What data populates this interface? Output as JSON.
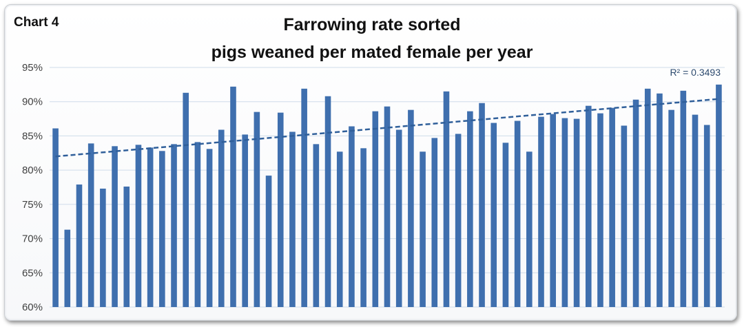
{
  "chart_label": "Chart 4",
  "chart_data": {
    "type": "bar",
    "title": "Farrowing rate sorted",
    "subtitle": "pigs weaned per mated female per year",
    "xlabel": "",
    "ylabel": "",
    "ylim": [
      60,
      95
    ],
    "yticks": [
      "60%",
      "65%",
      "70%",
      "75%",
      "80%",
      "85%",
      "90%",
      "95%"
    ],
    "grid": true,
    "bar_color": "#3f6fae",
    "trendline": {
      "type": "linear",
      "style": "dashed",
      "color": "#2f5f9a",
      "start": 82.0,
      "end": 90.4,
      "label": "R² = 0.3493"
    },
    "values": [
      86.1,
      71.3,
      77.9,
      83.9,
      77.3,
      83.5,
      77.6,
      83.7,
      83.3,
      82.8,
      83.8,
      91.3,
      84.1,
      83.1,
      85.9,
      92.2,
      85.2,
      88.5,
      79.2,
      88.4,
      85.6,
      91.9,
      83.8,
      90.8,
      82.7,
      86.4,
      83.2,
      88.6,
      89.3,
      85.9,
      88.8,
      82.7,
      84.7,
      91.5,
      85.3,
      88.6,
      89.8,
      86.9,
      84.0,
      87.2,
      82.7,
      87.8,
      88.2,
      87.6,
      87.5,
      89.4,
      88.3,
      89.1,
      86.5,
      90.3,
      91.9,
      91.2,
      88.8,
      91.6,
      88.1,
      86.6,
      92.5
    ]
  }
}
